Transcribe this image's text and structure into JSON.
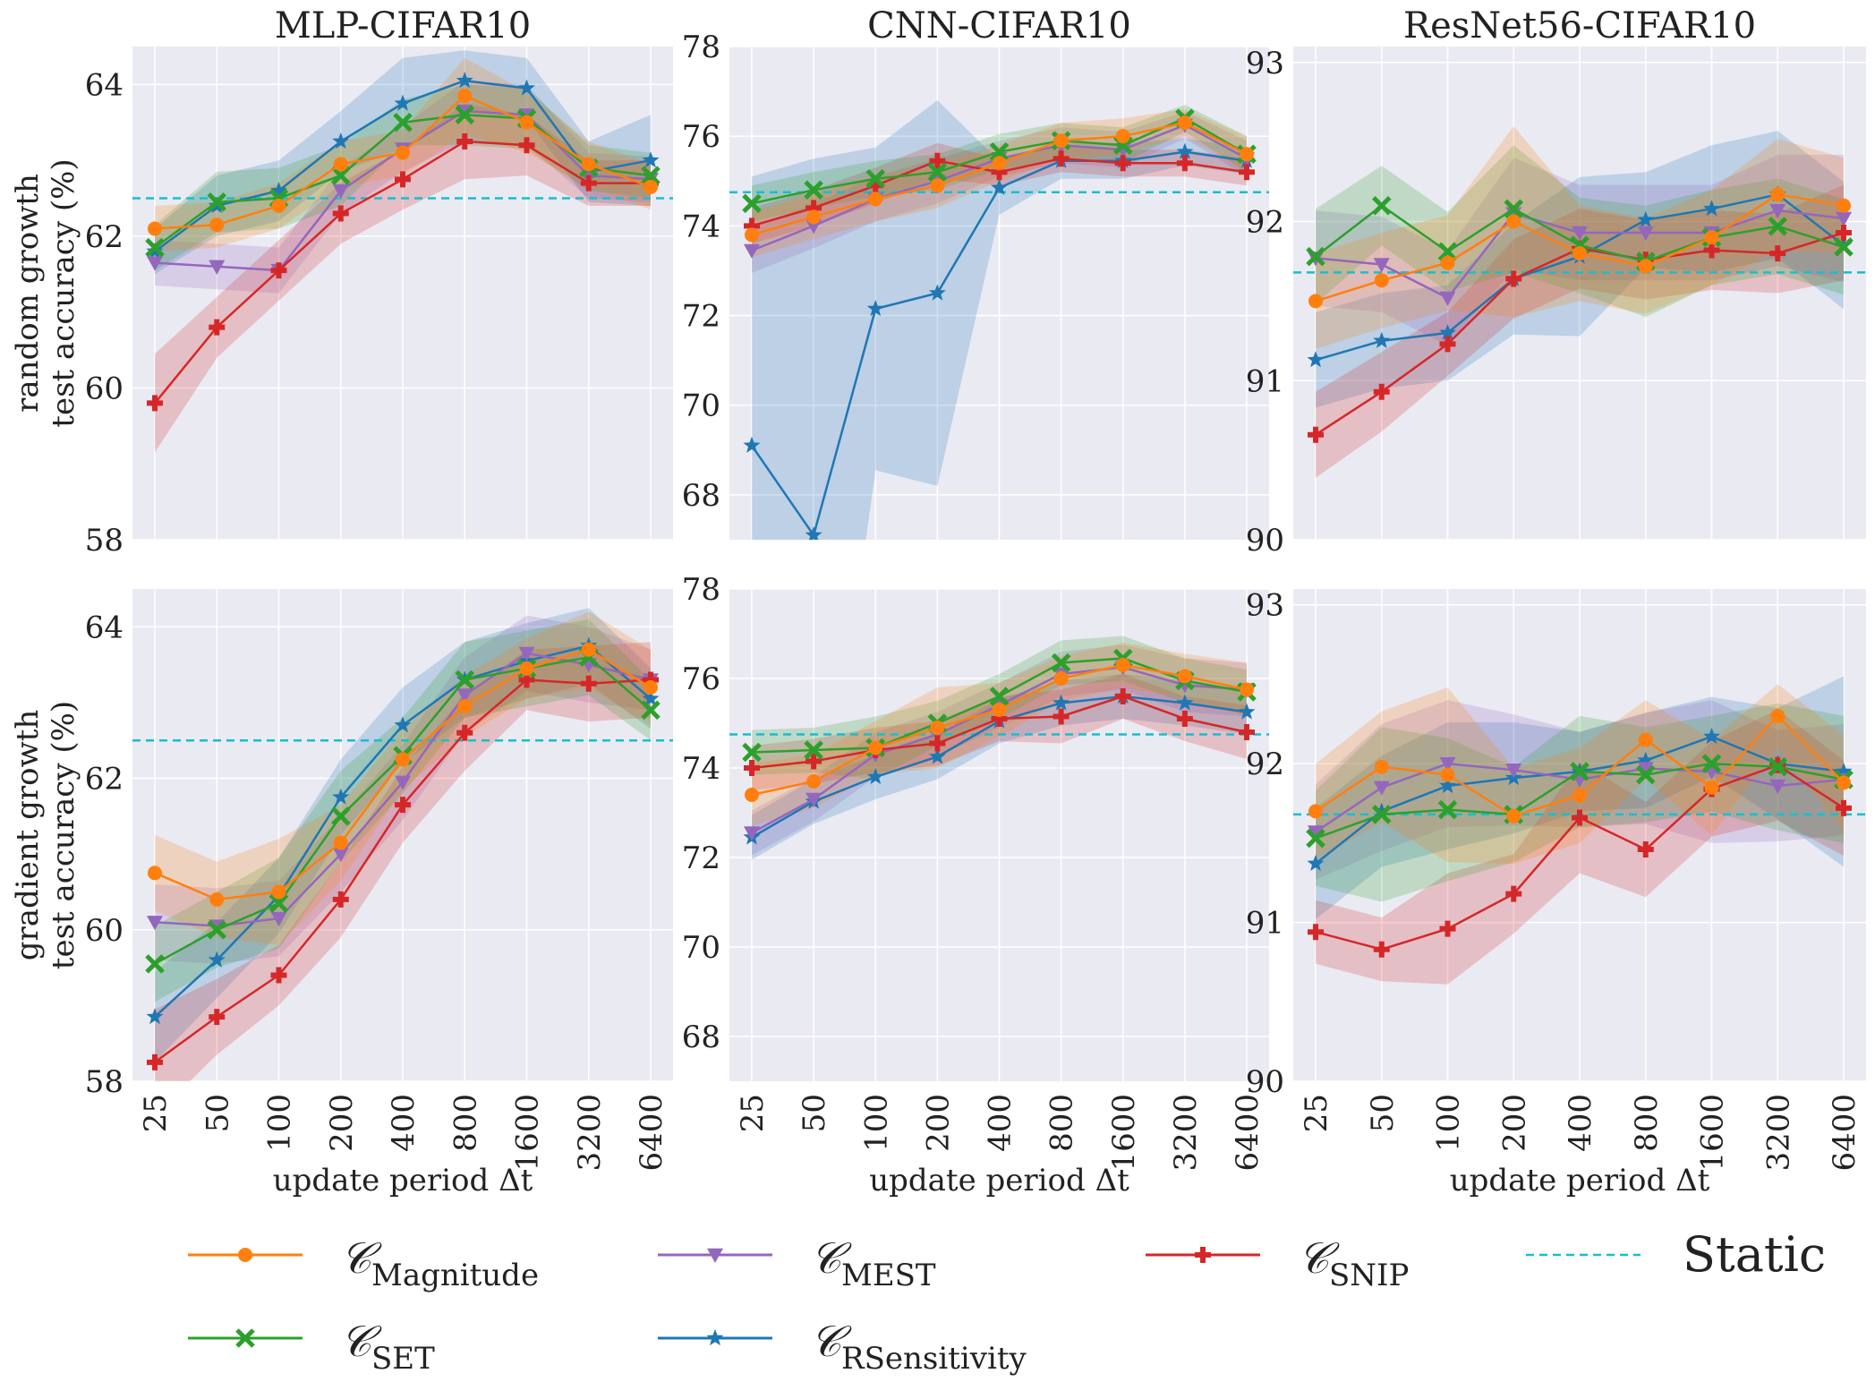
{
  "chart_data": [
    {
      "type": "line",
      "title": "MLP-CIFAR10",
      "row": "random growth",
      "ylabel": "random growth\ntest accuracy (%)",
      "xlabel": "",
      "categories": [
        "25",
        "50",
        "100",
        "200",
        "400",
        "800",
        "1600",
        "3200",
        "6400"
      ],
      "ylim": [
        58,
        64.5
      ],
      "yticks": [
        58,
        60,
        62,
        64
      ],
      "static": 62.5,
      "series": [
        {
          "name": "Magnitude",
          "values": [
            62.1,
            62.15,
            62.4,
            62.95,
            63.1,
            63.85,
            63.5,
            62.95,
            62.65
          ],
          "err": [
            0.3,
            0.3,
            0.3,
            0.3,
            0.3,
            0.5,
            0.4,
            0.3,
            0.3
          ]
        },
        {
          "name": "SET",
          "values": [
            61.85,
            62.45,
            62.5,
            62.8,
            63.5,
            63.6,
            63.55,
            62.9,
            62.8
          ],
          "err": [
            0.3,
            0.4,
            0.4,
            0.4,
            0.3,
            0.4,
            0.4,
            0.3,
            0.3
          ]
        },
        {
          "name": "MEST",
          "values": [
            61.65,
            61.6,
            61.55,
            62.6,
            63.15,
            63.65,
            63.6,
            62.8,
            62.75
          ],
          "err": [
            0.3,
            0.3,
            0.3,
            0.3,
            0.3,
            0.4,
            0.4,
            0.3,
            0.3
          ]
        },
        {
          "name": "SNIP",
          "values": [
            59.8,
            60.8,
            61.55,
            62.3,
            62.75,
            63.25,
            63.2,
            62.7,
            62.7
          ],
          "err": [
            0.65,
            0.4,
            0.4,
            0.4,
            0.4,
            0.5,
            0.4,
            0.3,
            0.3
          ]
        },
        {
          "name": "RSensitivity",
          "values": [
            61.8,
            62.4,
            62.6,
            63.25,
            63.75,
            64.05,
            63.95,
            62.85,
            63.0
          ],
          "err": [
            0.3,
            0.4,
            0.4,
            0.4,
            0.6,
            0.4,
            0.4,
            0.4,
            0.6
          ]
        }
      ]
    },
    {
      "type": "line",
      "title": "CNN-CIFAR10",
      "row": "random growth",
      "ylabel": "",
      "xlabel": "",
      "categories": [
        "25",
        "50",
        "100",
        "200",
        "400",
        "800",
        "1600",
        "3200",
        "6400"
      ],
      "ylim": [
        67,
        78
      ],
      "yticks": [
        68,
        70,
        72,
        74,
        76,
        78
      ],
      "static": 74.75,
      "series": [
        {
          "name": "Magnitude",
          "values": [
            73.8,
            74.2,
            74.6,
            74.9,
            75.4,
            75.9,
            76.0,
            76.3,
            75.6
          ],
          "err": [
            0.5,
            0.5,
            0.5,
            0.5,
            0.4,
            0.4,
            0.4,
            0.3,
            0.4
          ]
        },
        {
          "name": "SET",
          "values": [
            74.5,
            74.8,
            75.05,
            75.2,
            75.65,
            75.9,
            75.8,
            76.4,
            75.6
          ],
          "err": [
            0.4,
            0.4,
            0.4,
            0.4,
            0.4,
            0.4,
            0.4,
            0.3,
            0.4
          ]
        },
        {
          "name": "MEST",
          "values": [
            73.45,
            74.0,
            74.6,
            75.0,
            75.5,
            75.8,
            75.7,
            76.25,
            75.5
          ],
          "err": [
            0.5,
            0.5,
            0.5,
            0.5,
            0.4,
            0.4,
            0.4,
            0.3,
            0.4
          ]
        },
        {
          "name": "SNIP",
          "values": [
            74.0,
            74.4,
            74.9,
            75.45,
            75.2,
            75.5,
            75.4,
            75.4,
            75.2
          ],
          "err": [
            0.4,
            0.4,
            0.4,
            0.4,
            0.3,
            0.3,
            0.3,
            0.3,
            0.3
          ]
        },
        {
          "name": "RSensitivity",
          "values": [
            69.1,
            67.1,
            72.15,
            72.5,
            74.85,
            75.45,
            75.45,
            75.65,
            75.45
          ],
          "err": [
            6.0,
            8.4,
            3.6,
            4.3,
            0.6,
            0.4,
            0.4,
            0.3,
            0.3
          ]
        }
      ]
    },
    {
      "type": "line",
      "title": "ResNet56-CIFAR10",
      "row": "random growth",
      "ylabel": "",
      "xlabel": "",
      "categories": [
        "25",
        "50",
        "100",
        "200",
        "400",
        "800",
        "1600",
        "3200",
        "6400"
      ],
      "ylim": [
        90,
        93.1
      ],
      "yticks": [
        90,
        91,
        92,
        93
      ],
      "static": 91.68,
      "series": [
        {
          "name": "Magnitude",
          "values": [
            91.5,
            91.63,
            91.74,
            92.0,
            91.8,
            91.72,
            91.9,
            92.17,
            92.1
          ],
          "err": [
            0.3,
            0.3,
            0.3,
            0.6,
            0.3,
            0.3,
            0.3,
            0.35,
            0.3
          ]
        },
        {
          "name": "SET",
          "values": [
            91.78,
            92.1,
            91.81,
            92.08,
            91.85,
            91.75,
            91.9,
            91.97,
            91.84
          ],
          "err": [
            0.3,
            0.25,
            0.25,
            0.4,
            0.3,
            0.35,
            0.3,
            0.3,
            0.3
          ]
        },
        {
          "name": "MEST",
          "values": [
            91.77,
            91.73,
            91.52,
            92.05,
            91.93,
            91.93,
            91.93,
            92.07,
            92.02
          ],
          "err": [
            0.3,
            0.3,
            0.3,
            0.35,
            0.3,
            0.3,
            0.3,
            0.35,
            0.4
          ]
        },
        {
          "name": "SNIP",
          "values": [
            90.66,
            90.93,
            91.23,
            91.64,
            91.83,
            91.76,
            91.82,
            91.8,
            91.93
          ],
          "err": [
            0.27,
            0.25,
            0.2,
            0.25,
            0.25,
            0.25,
            0.25,
            0.25,
            0.3
          ]
        },
        {
          "name": "RSensitivity",
          "values": [
            91.13,
            91.25,
            91.3,
            91.64,
            91.78,
            92.01,
            92.08,
            92.17,
            91.85
          ],
          "err": [
            0.3,
            0.3,
            0.3,
            0.35,
            0.5,
            0.3,
            0.4,
            0.4,
            0.4
          ]
        }
      ]
    },
    {
      "type": "line",
      "title": "",
      "row": "gradient growth",
      "ylabel": "gradient growth\ntest accuracy (%)",
      "xlabel": "update period Δt",
      "categories": [
        "25",
        "50",
        "100",
        "200",
        "400",
        "800",
        "1600",
        "3200",
        "6400"
      ],
      "ylim": [
        58,
        64.5
      ],
      "yticks": [
        58,
        60,
        62,
        64
      ],
      "static": 62.5,
      "series": [
        {
          "name": "Magnitude",
          "values": [
            60.75,
            60.4,
            60.5,
            61.15,
            62.25,
            62.95,
            63.45,
            63.7,
            63.2
          ],
          "err": [
            0.5,
            0.5,
            0.7,
            0.5,
            0.4,
            0.4,
            0.4,
            0.5,
            0.5
          ]
        },
        {
          "name": "SET",
          "values": [
            59.55,
            60.0,
            60.35,
            61.5,
            62.3,
            63.3,
            63.45,
            63.6,
            62.9
          ],
          "err": [
            0.5,
            0.5,
            0.6,
            0.6,
            0.5,
            0.5,
            0.5,
            0.5,
            0.4
          ]
        },
        {
          "name": "MEST",
          "values": [
            60.1,
            60.05,
            60.15,
            61.0,
            61.95,
            63.1,
            63.65,
            63.5,
            63.3
          ],
          "err": [
            0.5,
            0.5,
            0.5,
            0.5,
            0.5,
            0.5,
            0.5,
            0.5,
            0.4
          ]
        },
        {
          "name": "SNIP",
          "values": [
            58.25,
            58.85,
            59.4,
            60.4,
            61.65,
            62.6,
            63.3,
            63.25,
            63.3
          ],
          "err": [
            0.7,
            0.5,
            0.4,
            0.5,
            0.5,
            0.5,
            0.4,
            0.5,
            0.5
          ]
        },
        {
          "name": "RSensitivity",
          "values": [
            58.85,
            59.6,
            60.45,
            61.75,
            62.7,
            63.3,
            63.55,
            63.75,
            63.05
          ],
          "err": [
            0.6,
            0.5,
            0.5,
            0.5,
            0.5,
            0.5,
            0.5,
            0.5,
            0.4
          ]
        }
      ]
    },
    {
      "type": "line",
      "title": "",
      "row": "gradient growth",
      "ylabel": "",
      "xlabel": "update period Δt",
      "categories": [
        "25",
        "50",
        "100",
        "200",
        "400",
        "800",
        "1600",
        "3200",
        "6400"
      ],
      "ylim": [
        67,
        78
      ],
      "yticks": [
        68,
        70,
        72,
        74,
        76,
        78
      ],
      "static": 74.75,
      "series": [
        {
          "name": "Magnitude",
          "values": [
            73.4,
            73.7,
            74.45,
            74.9,
            75.3,
            76.0,
            76.3,
            76.05,
            75.75
          ],
          "err": [
            0.7,
            0.6,
            0.6,
            0.9,
            0.6,
            0.5,
            0.5,
            0.5,
            0.6
          ]
        },
        {
          "name": "SET",
          "values": [
            74.35,
            74.4,
            74.45,
            75.0,
            75.6,
            76.35,
            76.45,
            75.95,
            75.7
          ],
          "err": [
            0.5,
            0.5,
            0.7,
            0.5,
            0.5,
            0.5,
            0.5,
            0.5,
            0.5
          ]
        },
        {
          "name": "MEST",
          "values": [
            72.55,
            73.3,
            74.3,
            74.75,
            75.4,
            76.1,
            76.25,
            75.85,
            75.75
          ],
          "err": [
            0.5,
            0.5,
            0.5,
            0.5,
            0.5,
            0.5,
            0.5,
            0.6,
            0.6
          ]
        },
        {
          "name": "SNIP",
          "values": [
            74.0,
            74.15,
            74.4,
            74.55,
            75.1,
            75.15,
            75.6,
            75.1,
            74.8
          ],
          "err": [
            0.5,
            0.5,
            0.5,
            0.5,
            0.5,
            0.6,
            0.5,
            0.5,
            0.6
          ]
        },
        {
          "name": "RSensitivity",
          "values": [
            72.45,
            73.25,
            73.8,
            74.25,
            75.05,
            75.45,
            75.6,
            75.45,
            75.25
          ],
          "err": [
            0.5,
            0.5,
            0.5,
            0.5,
            0.5,
            0.5,
            0.5,
            0.5,
            0.5
          ]
        }
      ]
    },
    {
      "type": "line",
      "title": "",
      "row": "gradient growth",
      "ylabel": "",
      "xlabel": "update period Δt",
      "categories": [
        "25",
        "50",
        "100",
        "200",
        "400",
        "800",
        "1600",
        "3200",
        "6400"
      ],
      "ylim": [
        90,
        93.1
      ],
      "yticks": [
        90,
        91,
        92,
        93
      ],
      "static": 91.68,
      "series": [
        {
          "name": "Magnitude",
          "values": [
            91.7,
            91.98,
            91.93,
            91.67,
            91.8,
            92.15,
            91.85,
            92.3,
            91.88
          ],
          "err": [
            0.3,
            0.35,
            0.55,
            0.3,
            0.3,
            0.25,
            0.3,
            0.2,
            0.3
          ]
        },
        {
          "name": "SET",
          "values": [
            91.53,
            91.68,
            91.71,
            91.68,
            91.95,
            91.93,
            92.0,
            91.98,
            91.9
          ],
          "err": [
            0.3,
            0.55,
            0.45,
            0.3,
            0.35,
            0.3,
            0.3,
            0.4,
            0.4
          ]
        },
        {
          "name": "MEST",
          "values": [
            91.57,
            91.85,
            92.0,
            91.96,
            91.9,
            91.97,
            91.95,
            91.86,
            91.9
          ],
          "err": [
            0.3,
            0.4,
            0.4,
            0.35,
            0.3,
            0.35,
            0.45,
            0.35,
            0.35
          ]
        },
        {
          "name": "SNIP",
          "values": [
            90.94,
            90.83,
            90.96,
            91.18,
            91.66,
            91.46,
            91.84,
            91.99,
            91.72
          ],
          "err": [
            0.2,
            0.2,
            0.35,
            0.25,
            0.35,
            0.3,
            0.3,
            0.35,
            0.3
          ]
        },
        {
          "name": "RSensitivity",
          "values": [
            91.37,
            91.7,
            91.86,
            91.91,
            91.95,
            92.02,
            92.17,
            92.0,
            91.95
          ],
          "err": [
            0.35,
            0.35,
            0.4,
            0.35,
            0.25,
            0.3,
            0.25,
            0.35,
            0.6
          ]
        }
      ]
    }
  ],
  "legend": {
    "items": [
      {
        "symbol": "𝒞",
        "sub": "Magnitude",
        "series": "Magnitude"
      },
      {
        "symbol": "𝒞",
        "sub": "SET",
        "series": "SET"
      },
      {
        "symbol": "𝒞",
        "sub": "MEST",
        "series": "MEST"
      },
      {
        "symbol": "𝒞",
        "sub": "RSensitivity",
        "series": "RSensitivity"
      },
      {
        "symbol": "𝒞",
        "sub": "SNIP",
        "series": "SNIP"
      }
    ],
    "static_label": "Static"
  },
  "styles": {
    "Magnitude": {
      "color": "#ff7f0e",
      "marker": "circle"
    },
    "SET": {
      "color": "#2ca02c",
      "marker": "x"
    },
    "MEST": {
      "color": "#9467bd",
      "marker": "triangle-down"
    },
    "RSensitivity": {
      "color": "#1f77b4",
      "marker": "star"
    },
    "SNIP": {
      "color": "#d62728",
      "marker": "plus"
    },
    "Static": {
      "color": "#17becf"
    },
    "panel_bg": "#eaeaf2"
  }
}
